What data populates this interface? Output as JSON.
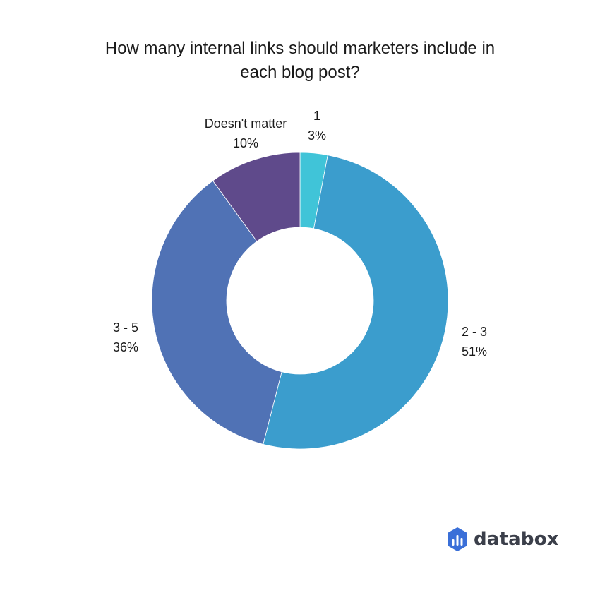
{
  "chart_data": {
    "type": "pie",
    "subtype": "donut",
    "title_lines": [
      "How many internal links should marketers include in",
      "each blog post?"
    ],
    "categories": [
      "1",
      "2 - 3",
      "3 - 5",
      "Doesn't matter"
    ],
    "values": [
      3,
      51,
      36,
      10
    ],
    "value_labels": [
      "3%",
      "51%",
      "36%",
      "10%"
    ],
    "colors": [
      "#40c4d8",
      "#3b9dcd",
      "#5072b5",
      "#5f4a8b"
    ],
    "legend": "none"
  },
  "branding": {
    "logo_text": "databox",
    "logo_color": "#3a6fd8",
    "text_color": "#3b3f4a"
  }
}
